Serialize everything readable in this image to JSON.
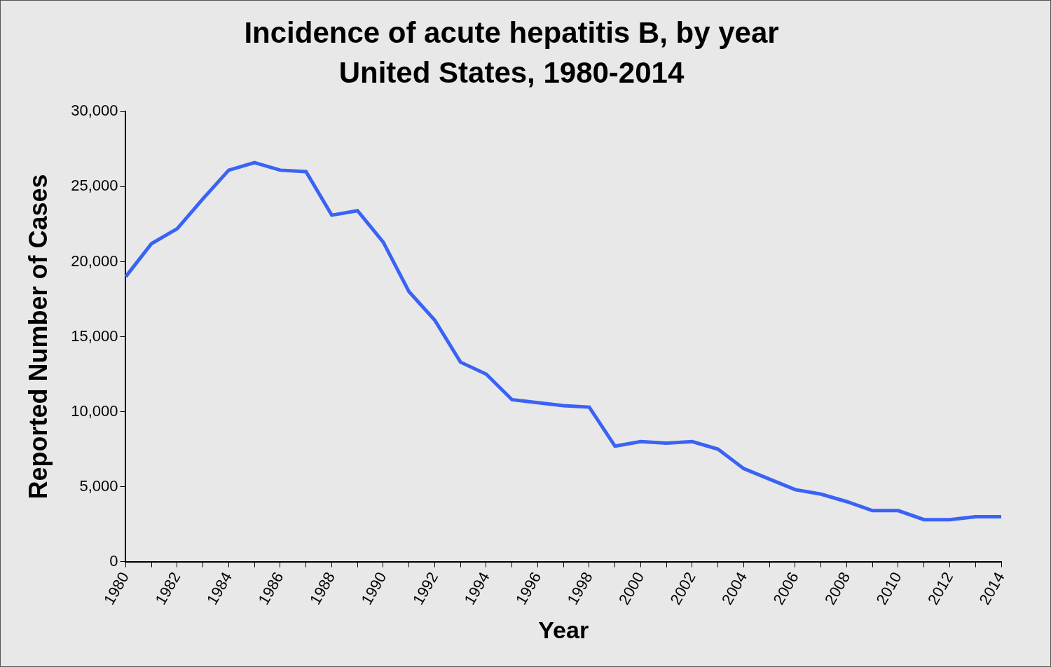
{
  "chart_data": {
    "type": "line",
    "title": [
      "Incidence of acute hepatitis B, by year",
      "United States, 1980-2014"
    ],
    "x_label": "Year",
    "y_label": "Reported Number of Cases",
    "categories": [
      "1980",
      null,
      "1982",
      null,
      "1984",
      null,
      "1986",
      null,
      "1988",
      null,
      "1990",
      null,
      "1992",
      null,
      "1994",
      null,
      "1996",
      null,
      "1998",
      null,
      "2000",
      null,
      "2002",
      null,
      "2004",
      null,
      "2006",
      null,
      "2008",
      null,
      "2010",
      null,
      "2012",
      null,
      "2014"
    ],
    "values": [
      19000,
      21200,
      22200,
      24200,
      26100,
      26600,
      26100,
      26000,
      23100,
      23400,
      21300,
      18000,
      16100,
      13300,
      12500,
      10800,
      10600,
      10400,
      10300,
      7700,
      8000,
      7900,
      8000,
      7500,
      6200,
      5500,
      4800,
      4500,
      4000,
      3400,
      3400,
      2800,
      2800,
      3000,
      3000
    ],
    "color": "#3a63f5",
    "ylim": [
      0,
      30000
    ],
    "yticks": [
      0,
      {
        "value": 5000,
        "label": "5,000"
      },
      {
        "value": 10000,
        "label": "10,000"
      },
      {
        "value": 15000,
        "label": "15,000"
      },
      {
        "value": 20000,
        "label": "20,000"
      },
      {
        "value": 25000,
        "label": "25,000"
      },
      {
        "value": 30000,
        "label": "30,000"
      }
    ],
    "grid": false
  }
}
